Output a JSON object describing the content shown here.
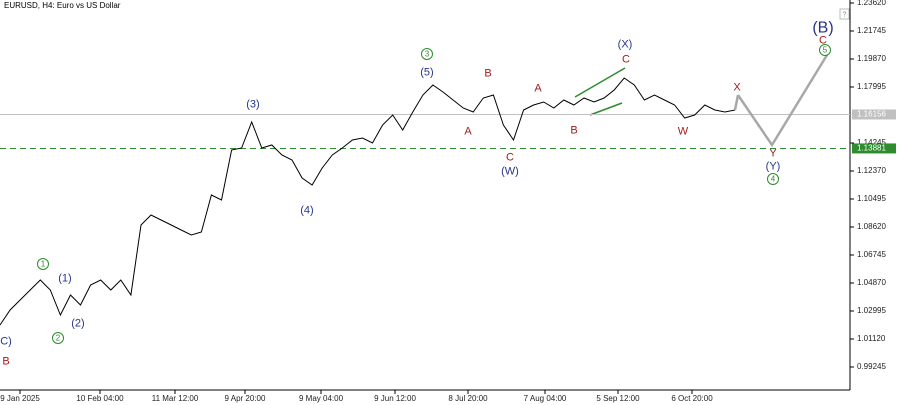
{
  "chart_data": {
    "type": "line",
    "title": "EURUSD, H4:  Euro vs US Dollar",
    "series": [
      {
        "name": "EURUSD",
        "color": "#000000",
        "values": [
          1.02058,
          1.03062,
          1.03732,
          1.04401,
          1.05071,
          1.04401,
          1.02727,
          1.04066,
          1.03397,
          1.04736,
          1.05071,
          1.04401,
          1.05071,
          1.04066,
          1.08754,
          1.09424,
          1.09089,
          1.08754,
          1.08419,
          1.08084,
          1.08285,
          1.10763,
          1.10428,
          1.13776,
          1.1391,
          1.15651,
          1.1391,
          1.14111,
          1.13441,
          1.13107,
          1.11901,
          1.11433,
          1.12571,
          1.13441,
          1.1391,
          1.14446,
          1.1458,
          1.14245,
          1.1545,
          1.1612,
          1.15116,
          1.16321,
          1.17459,
          1.18129,
          1.1766,
          1.17124,
          1.16589,
          1.16321,
          1.17258,
          1.17459,
          1.1545,
          1.14446,
          1.16455,
          1.1679,
          1.16991,
          1.16589,
          1.17124,
          1.1679,
          1.17258,
          1.16991,
          1.17258,
          1.17794,
          1.18598,
          1.18129,
          1.17124,
          1.17459,
          1.17124,
          1.1679,
          1.15919,
          1.1612,
          1.1679,
          1.16455,
          1.16321,
          1.16455
        ]
      }
    ],
    "projection": {
      "color": "#a8a8a8",
      "values": [
        1.1746,
        1.1411,
        1.2014
      ]
    },
    "current_price": 1.16156,
    "level": {
      "value": 1.13881,
      "color": "#2e8b2e"
    },
    "x_labels": [
      "9 Jan 2025",
      "10 Feb 04:00",
      "11 Mar 12:00",
      "9 Apr 20:00",
      "9 May 04:00",
      "9 Jun 12:00",
      "8 Jul 20:00",
      "7 Aug 04:00",
      "5 Sep 12:00",
      "6 Oct 20:00"
    ],
    "ylim": [
      0.97705,
      1.23821
    ],
    "yticks": [
      {
        "value": 1.2362,
        "label": "1.23620"
      },
      1.21745,
      {
        "value": 1.1987,
        "label": "1.19870"
      },
      1.17995,
      1.14245,
      {
        "value": 1.1237,
        "label": "1.12370"
      },
      1.10495,
      {
        "value": 1.0862,
        "label": "1.08620"
      },
      1.06745,
      {
        "value": 1.0487,
        "label": "1.04870"
      },
      1.02995,
      {
        "value": 1.0112,
        "label": "1.01120"
      },
      0.99245
    ],
    "wave_labels": [
      {
        "text": "C)",
        "color": "#27348b",
        "style": "plain"
      },
      {
        "text": "B",
        "color": "#a01d1d",
        "style": "plain"
      },
      {
        "text": "1",
        "color": "#2e8b2e",
        "style": "circle"
      },
      {
        "text": "(1)",
        "color": "#27348b",
        "style": "plain"
      },
      {
        "text": "(2)",
        "color": "#27348b",
        "style": "plain"
      },
      {
        "text": "2",
        "color": "#2e8b2e",
        "style": "circle"
      },
      {
        "text": "(3)",
        "color": "#27348b",
        "style": "plain"
      },
      {
        "text": "(4)",
        "color": "#27348b",
        "style": "plain"
      },
      {
        "text": "(5)",
        "color": "#27348b",
        "style": "plain"
      },
      {
        "text": "3",
        "color": "#2e8b2e",
        "style": "circle"
      },
      {
        "text": "A",
        "color": "#a01d1d",
        "style": "plain"
      },
      {
        "text": "B",
        "color": "#a01d1d",
        "style": "plain"
      },
      {
        "text": "C",
        "color": "#a01d1d",
        "style": "plain"
      },
      {
        "text": "(W)",
        "color": "#27348b",
        "style": "plain"
      },
      {
        "text": "A",
        "color": "#a01d1d",
        "style": "plain"
      },
      {
        "text": "B",
        "color": "#a01d1d",
        "style": "plain"
      },
      {
        "text": "C",
        "color": "#a01d1d",
        "style": "plain"
      },
      {
        "text": "(X)",
        "color": "#27348b",
        "style": "plain"
      },
      {
        "text": "W",
        "color": "#a01d1d",
        "style": "plain"
      },
      {
        "text": "X",
        "color": "#a01d1d",
        "style": "plain"
      },
      {
        "text": "Y",
        "color": "#a01d1d",
        "style": "plain"
      },
      {
        "text": "(Y)",
        "color": "#27348b",
        "style": "plain"
      },
      {
        "text": "4",
        "color": "#2e8b2e",
        "style": "circle"
      },
      {
        "text": "(B)",
        "color": "#27348b",
        "style": "big"
      },
      {
        "text": "C",
        "color": "#a01d1d",
        "style": "plain"
      },
      {
        "text": "5",
        "color": "#2e8b2e",
        "style": "circle"
      }
    ]
  }
}
